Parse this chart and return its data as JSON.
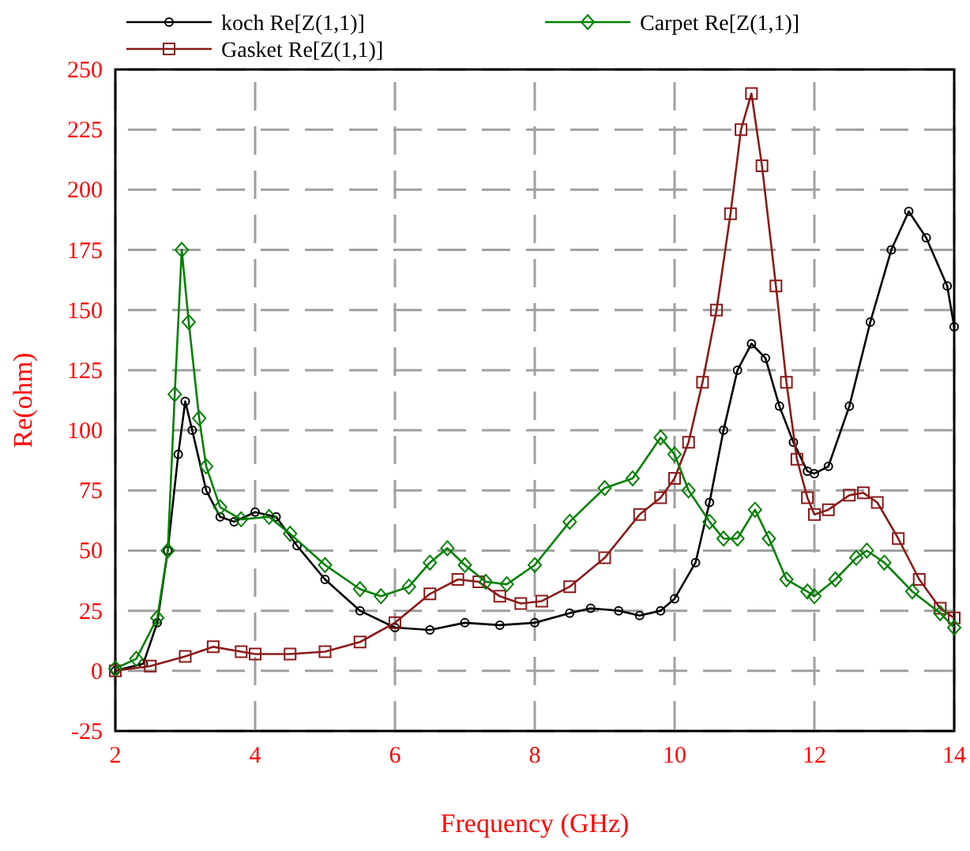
{
  "chart_data": {
    "type": "line",
    "xlabel": "Frequency (GHz)",
    "ylabel": "Re(ohm)",
    "xlim": [
      2,
      14
    ],
    "ylim": [
      -25,
      250
    ],
    "xticks": [
      2,
      4,
      6,
      8,
      10,
      12,
      14
    ],
    "yticks": [
      -25,
      0,
      25,
      50,
      75,
      100,
      125,
      150,
      175,
      200,
      225,
      250
    ],
    "grid": true,
    "legend": "top",
    "line_style": "solid",
    "series": [
      {
        "name": "koch Re[Z(1,1)]",
        "color": "#000000",
        "marker": "circle",
        "x": [
          2,
          2.4,
          2.6,
          2.75,
          2.9,
          3.0,
          3.1,
          3.3,
          3.5,
          3.7,
          4.0,
          4.3,
          4.6,
          5,
          5.5,
          6,
          6.5,
          7,
          7.5,
          8,
          8.5,
          8.8,
          9.2,
          9.5,
          9.8,
          10,
          10.3,
          10.5,
          10.7,
          10.9,
          11.1,
          11.3,
          11.5,
          11.7,
          11.9,
          12.0,
          12.2,
          12.5,
          12.8,
          13.1,
          13.35,
          13.6,
          13.9,
          14
        ],
        "values": [
          0,
          3,
          20,
          50,
          90,
          112,
          100,
          75,
          64,
          62,
          66,
          64,
          52,
          38,
          25,
          18,
          17,
          20,
          19,
          20,
          24,
          26,
          25,
          23,
          25,
          30,
          45,
          70,
          100,
          125,
          136,
          130,
          110,
          95,
          83,
          82,
          85,
          110,
          145,
          175,
          191,
          180,
          160,
          143
        ]
      },
      {
        "name": "Gasket Re[Z(1,1)]",
        "color": "#8b1a1a",
        "marker": "square",
        "x": [
          2,
          2.5,
          3,
          3.4,
          3.8,
          4,
          4.5,
          5,
          5.5,
          6,
          6.5,
          6.9,
          7.2,
          7.5,
          7.8,
          8.1,
          8.5,
          9,
          9.5,
          9.8,
          10,
          10.2,
          10.4,
          10.6,
          10.8,
          10.95,
          11.1,
          11.25,
          11.45,
          11.6,
          11.75,
          11.9,
          12,
          12.2,
          12.5,
          12.7,
          12.9,
          13.2,
          13.5,
          13.8,
          14
        ],
        "values": [
          0,
          2,
          6,
          10,
          8,
          7,
          7,
          8,
          12,
          20,
          32,
          38,
          37,
          31,
          28,
          29,
          35,
          47,
          65,
          72,
          80,
          95,
          120,
          150,
          190,
          225,
          240,
          210,
          160,
          120,
          88,
          72,
          65,
          67,
          73,
          74,
          70,
          55,
          38,
          26,
          22
        ]
      },
      {
        "name": "Carpet Re[Z(1,1)]",
        "color": "#008000",
        "marker": "diamond",
        "x": [
          2,
          2.3,
          2.6,
          2.75,
          2.85,
          2.95,
          3.05,
          3.2,
          3.3,
          3.5,
          3.8,
          4.2,
          4.5,
          5,
          5.5,
          5.8,
          6.2,
          6.5,
          6.75,
          7.0,
          7.3,
          7.6,
          8,
          8.5,
          9,
          9.4,
          9.8,
          10.0,
          10.2,
          10.5,
          10.7,
          10.9,
          11.15,
          11.35,
          11.6,
          11.9,
          12.0,
          12.3,
          12.6,
          12.75,
          13.0,
          13.4,
          13.8,
          14
        ],
        "values": [
          1,
          5,
          22,
          50,
          115,
          175,
          145,
          105,
          85,
          68,
          63,
          64,
          57,
          44,
          34,
          31,
          35,
          45,
          51,
          44,
          37,
          36,
          44,
          62,
          76,
          80,
          97,
          90,
          75,
          62,
          55,
          55,
          67,
          55,
          38,
          33,
          31,
          38,
          47,
          50,
          45,
          33,
          24,
          18
        ]
      }
    ]
  }
}
